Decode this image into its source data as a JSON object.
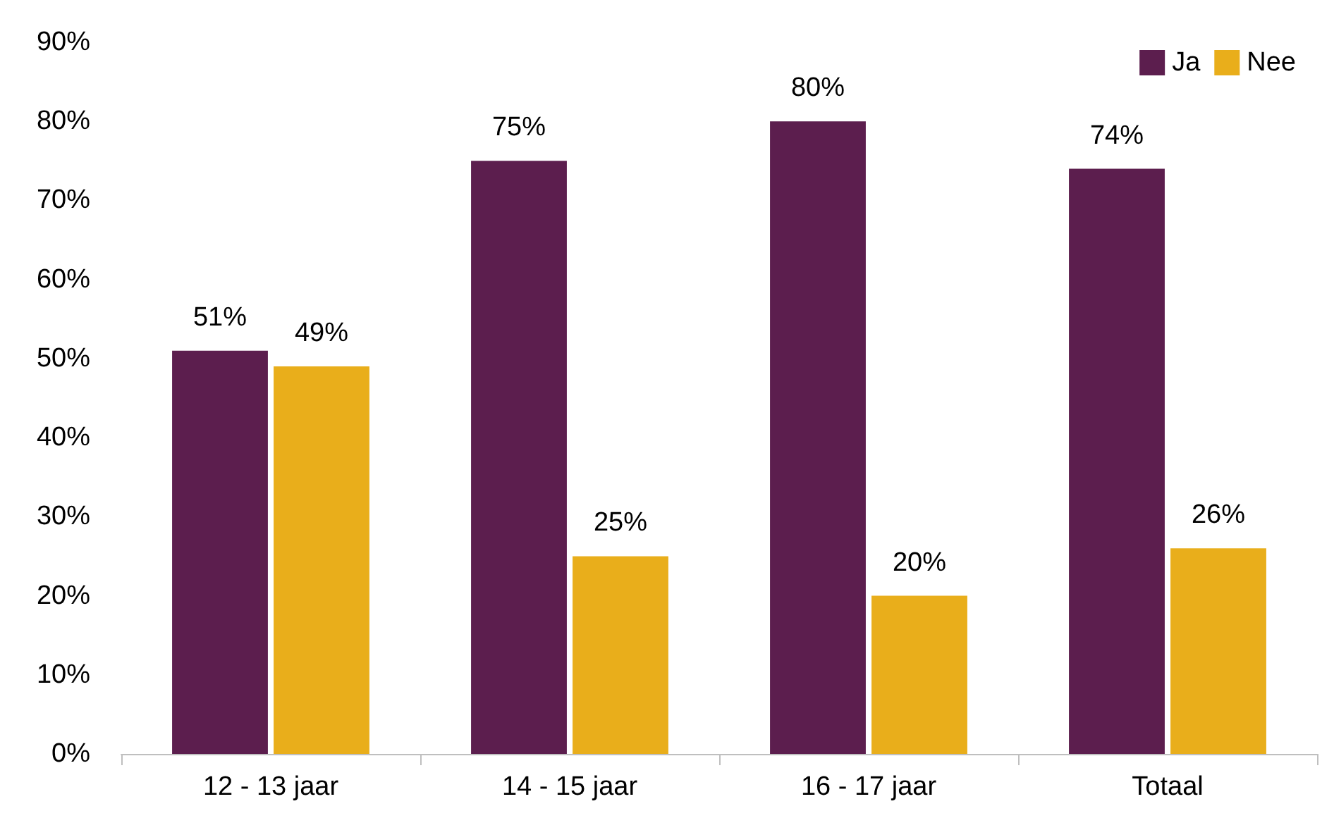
{
  "chart_data": {
    "type": "bar",
    "categories": [
      "12 - 13 jaar",
      "14 - 15 jaar",
      "16 - 17 jaar",
      "Totaal"
    ],
    "series": [
      {
        "name": "Ja",
        "color": "#5c1e4e",
        "values": [
          51,
          75,
          80,
          74
        ],
        "value_labels": [
          "51%",
          "75%",
          "80%",
          "74%"
        ]
      },
      {
        "name": "Nee",
        "color": "#e9ae1b",
        "values": [
          49,
          25,
          20,
          26
        ],
        "value_labels": [
          "49%",
          "25%",
          "20%",
          "26%"
        ]
      }
    ],
    "ylim": [
      0,
      90
    ],
    "yticks": [
      {
        "value": 0,
        "label": "0%"
      },
      {
        "value": 10,
        "label": "10%"
      },
      {
        "value": 20,
        "label": "20%"
      },
      {
        "value": 30,
        "label": "30%"
      },
      {
        "value": 40,
        "label": "40%"
      },
      {
        "value": 50,
        "label": "50%"
      },
      {
        "value": 60,
        "label": "60%"
      },
      {
        "value": 70,
        "label": "70%"
      },
      {
        "value": 80,
        "label": "80%"
      },
      {
        "value": 90,
        "label": "90%"
      }
    ],
    "grid": false,
    "legend": "top right"
  }
}
